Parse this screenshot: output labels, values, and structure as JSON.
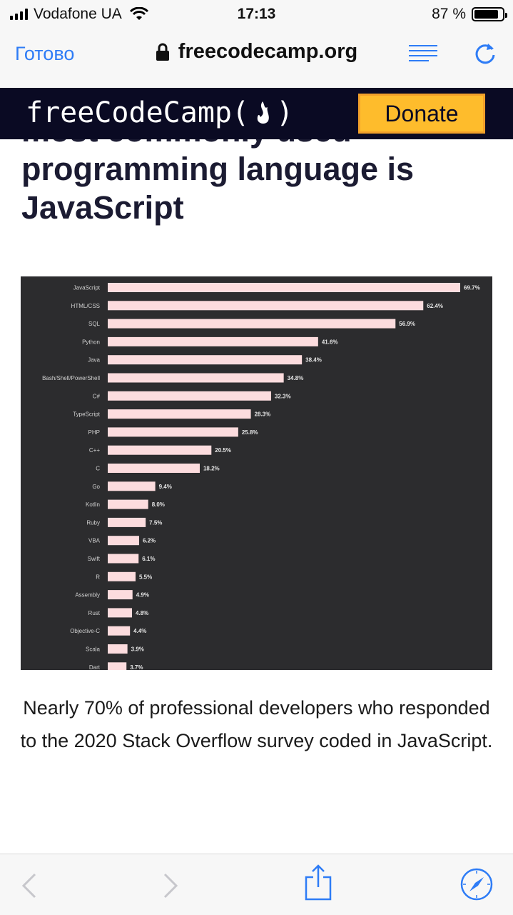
{
  "status_bar": {
    "carrier": "Vodafone UA",
    "time": "17:13",
    "battery_text": "87 %",
    "battery_level": 0.87
  },
  "safari": {
    "done_label": "Готово",
    "url": "freecodecamp.org"
  },
  "header": {
    "logo_left": "freeCodeCamp(",
    "logo_right": ")",
    "donate_label": "Donate"
  },
  "article": {
    "title": "most commonly used programming language is JavaScript",
    "caption": "Nearly 70% of professional developers who responded to the 2020 Stack Overflow survey coded in JavaScript."
  },
  "colors": {
    "accent": "#2e7cf6",
    "header_bg": "#0a0a23",
    "donate_bg": "#febc2c",
    "chart_bg": "#2c2c2e",
    "bar": "#fcdcde",
    "label": "#d0d0d0"
  },
  "chart_data": {
    "type": "bar",
    "orientation": "horizontal",
    "categories": [
      "JavaScript",
      "HTML/CSS",
      "SQL",
      "Python",
      "Java",
      "Bash/Shell/PowerShell",
      "C#",
      "TypeScript",
      "PHP",
      "C++",
      "C",
      "Go",
      "Kotlin",
      "Ruby",
      "VBA",
      "Swift",
      "R",
      "Assembly",
      "Rust",
      "Objective-C",
      "Scala",
      "Dart"
    ],
    "values": [
      69.7,
      62.4,
      56.9,
      41.6,
      38.4,
      34.8,
      32.3,
      28.3,
      25.8,
      20.5,
      18.2,
      9.4,
      8.0,
      7.5,
      6.2,
      6.1,
      5.5,
      4.9,
      4.8,
      4.4,
      3.9,
      3.7
    ],
    "value_labels": [
      "69.7%",
      "62.4%",
      "56.9%",
      "41.6%",
      "38.4%",
      "34.8%",
      "32.3%",
      "28.3%",
      "25.8%",
      "20.5%",
      "18.2%",
      "9.4%",
      "8.0%",
      "7.5%",
      "6.2%",
      "6.1%",
      "5.5%",
      "4.9%",
      "4.8%",
      "4.4%",
      "3.9%",
      "3.7%"
    ],
    "xlim": [
      0,
      69.7
    ],
    "grid": false
  }
}
